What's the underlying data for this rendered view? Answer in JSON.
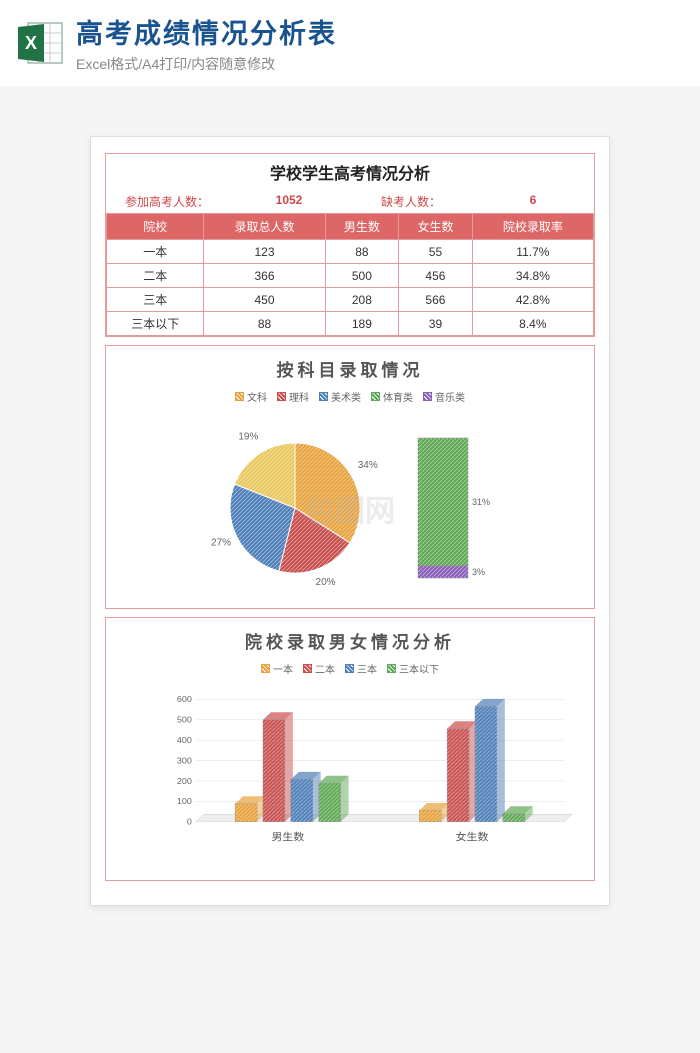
{
  "banner": {
    "title": "高考成绩情况分析表",
    "subtitle": "Excel格式/A4打印/内容随意修改"
  },
  "header": {
    "title": "学校学生高考情况分析",
    "participants_label": "参加高考人数：",
    "participants_value": "1052",
    "absent_label": "缺考人数：",
    "absent_value": "6"
  },
  "table": {
    "columns": [
      "院校",
      "录取总人数",
      "男生数",
      "女生数",
      "院校录取率"
    ],
    "rows": [
      [
        "一本",
        "123",
        "88",
        "55",
        "11.7%"
      ],
      [
        "二本",
        "366",
        "500",
        "456",
        "34.8%"
      ],
      [
        "三本",
        "450",
        "208",
        "566",
        "42.8%"
      ],
      [
        "三本以下",
        "88",
        "189",
        "39",
        "8.4%"
      ]
    ],
    "header_bg": "#d66666",
    "border_color": "#e89a9a"
  },
  "pie_chart": {
    "title": "按科目录取情况",
    "legend": [
      {
        "label": "文科",
        "color": "#e8a23c"
      },
      {
        "label": "理科",
        "color": "#c94f4f"
      },
      {
        "label": "美术类",
        "color": "#4f7fb8"
      },
      {
        "label": "体育类",
        "color": "#5fa855"
      },
      {
        "label": "音乐类",
        "color": "#8a5fb8"
      }
    ],
    "slices": [
      {
        "pct": 34,
        "color": "#e8a23c",
        "label": "34%"
      },
      {
        "pct": 20,
        "color": "#c94f4f",
        "label": "20%"
      },
      {
        "pct": 27,
        "color": "#4f7fb8",
        "label": "27%"
      },
      {
        "pct": 19,
        "color": "#e8c85c",
        "label": "19%"
      }
    ],
    "stack": [
      {
        "pct": 31,
        "color": "#5fa855",
        "label": "31%"
      },
      {
        "pct": 3,
        "color": "#8a5fb8",
        "label": "3%"
      }
    ]
  },
  "bar_chart": {
    "title": "院校录取男女情况分析",
    "legend": [
      {
        "label": "一本",
        "color": "#e8a23c"
      },
      {
        "label": "二本",
        "color": "#c94f4f"
      },
      {
        "label": "三本",
        "color": "#4f7fb8"
      },
      {
        "label": "三本以下",
        "color": "#5fa855"
      }
    ],
    "groups": [
      "男生数",
      "女生数"
    ],
    "y_max": 600,
    "y_step": 100,
    "series": [
      {
        "name": "一本",
        "color": "#e8a23c",
        "values": [
          88,
          55
        ]
      },
      {
        "name": "二本",
        "color": "#c94f4f",
        "values": [
          500,
          456
        ]
      },
      {
        "name": "三本",
        "color": "#4f7fb8",
        "values": [
          208,
          566
        ]
      },
      {
        "name": "三本以下",
        "color": "#5fa855",
        "values": [
          189,
          39
        ]
      }
    ]
  },
  "watermark": "包图网"
}
